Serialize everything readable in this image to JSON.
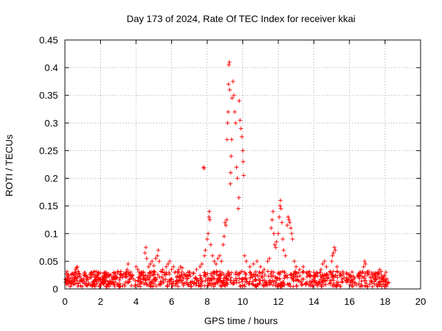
{
  "chart_data": {
    "type": "scatter",
    "title": "Day 173 of 2024, Rate Of TEC Index for receiver kkai",
    "xlabel": "GPS time / hours",
    "ylabel": "ROTI / TECUs",
    "xlim": [
      0,
      20
    ],
    "ylim": [
      0,
      0.45
    ],
    "x_ticks": [
      0,
      2,
      4,
      6,
      8,
      10,
      12,
      14,
      16,
      18,
      20
    ],
    "y_ticks": [
      0,
      0.05,
      0.1,
      0.15,
      0.2,
      0.25,
      0.3,
      0.35,
      0.4,
      0.45
    ],
    "x_tick_labels": [
      "0",
      "2",
      "4",
      "6",
      "8",
      "10",
      "12",
      "14",
      "16",
      "18",
      "20"
    ],
    "y_tick_labels": [
      "0",
      "0.05",
      "0.1",
      "0.15",
      "0.2",
      "0.25",
      "0.3",
      "0.35",
      "0.4",
      "0.45"
    ],
    "grid": true,
    "marker": "+",
    "color": "#ff0000",
    "series": [
      {
        "name": "ROTI",
        "points": [
          [
            0.05,
            0.012
          ],
          [
            0.1,
            0.008
          ],
          [
            0.15,
            0.015
          ],
          [
            0.2,
            0.01
          ],
          [
            0.3,
            0.018
          ],
          [
            0.4,
            0.02
          ],
          [
            0.5,
            0.025
          ],
          [
            0.55,
            0.03
          ],
          [
            0.6,
            0.035
          ],
          [
            0.65,
            0.038
          ],
          [
            0.7,
            0.04
          ],
          [
            0.75,
            0.032
          ],
          [
            0.8,
            0.028
          ],
          [
            0.9,
            0.02
          ],
          [
            1.0,
            0.015
          ],
          [
            1.2,
            0.018
          ],
          [
            1.4,
            0.02
          ],
          [
            1.5,
            0.025
          ],
          [
            1.6,
            0.03
          ],
          [
            1.7,
            0.022
          ],
          [
            1.9,
            0.018
          ],
          [
            2.1,
            0.022
          ],
          [
            2.3,
            0.02
          ],
          [
            2.5,
            0.024
          ],
          [
            2.7,
            0.022
          ],
          [
            2.9,
            0.02
          ],
          [
            3.1,
            0.02
          ],
          [
            3.3,
            0.028
          ],
          [
            3.5,
            0.035
          ],
          [
            3.55,
            0.045
          ],
          [
            3.6,
            0.03
          ],
          [
            3.8,
            0.025
          ],
          [
            4.0,
            0.04
          ],
          [
            4.1,
            0.035
          ],
          [
            4.3,
            0.03
          ],
          [
            4.5,
            0.065
          ],
          [
            4.55,
            0.075
          ],
          [
            4.6,
            0.055
          ],
          [
            4.7,
            0.04
          ],
          [
            4.8,
            0.045
          ],
          [
            4.9,
            0.05
          ],
          [
            5.0,
            0.042
          ],
          [
            5.1,
            0.055
          ],
          [
            5.2,
            0.06
          ],
          [
            5.25,
            0.07
          ],
          [
            5.3,
            0.05
          ],
          [
            5.5,
            0.035
          ],
          [
            5.7,
            0.04
          ],
          [
            5.8,
            0.045
          ],
          [
            5.9,
            0.05
          ],
          [
            6.0,
            0.035
          ],
          [
            6.1,
            0.04
          ],
          [
            6.2,
            0.03
          ],
          [
            6.4,
            0.035
          ],
          [
            6.5,
            0.04
          ],
          [
            6.6,
            0.038
          ],
          [
            6.8,
            0.025
          ],
          [
            7.0,
            0.03
          ],
          [
            7.2,
            0.028
          ],
          [
            7.4,
            0.035
          ],
          [
            7.6,
            0.04
          ],
          [
            7.7,
            0.045
          ],
          [
            7.8,
            0.22
          ],
          [
            7.82,
            0.218
          ],
          [
            7.85,
            0.06
          ],
          [
            7.9,
            0.07
          ],
          [
            8.0,
            0.09
          ],
          [
            8.05,
            0.1
          ],
          [
            8.1,
            0.13
          ],
          [
            8.12,
            0.14
          ],
          [
            8.15,
            0.125
          ],
          [
            8.2,
            0.08
          ],
          [
            8.3,
            0.06
          ],
          [
            8.4,
            0.05
          ],
          [
            8.5,
            0.045
          ],
          [
            8.6,
            0.055
          ],
          [
            8.7,
            0.06
          ],
          [
            8.8,
            0.05
          ],
          [
            8.9,
            0.08
          ],
          [
            8.95,
            0.095
          ],
          [
            9.0,
            0.12
          ],
          [
            9.05,
            0.115
          ],
          [
            9.1,
            0.125
          ],
          [
            9.12,
            0.27
          ],
          [
            9.15,
            0.3
          ],
          [
            9.18,
            0.32
          ],
          [
            9.2,
            0.37
          ],
          [
            9.22,
            0.405
          ],
          [
            9.25,
            0.41
          ],
          [
            9.27,
            0.36
          ],
          [
            9.3,
            0.19
          ],
          [
            9.32,
            0.21
          ],
          [
            9.35,
            0.24
          ],
          [
            9.38,
            0.27
          ],
          [
            9.4,
            0.345
          ],
          [
            9.45,
            0.375
          ],
          [
            9.5,
            0.35
          ],
          [
            9.55,
            0.32
          ],
          [
            9.6,
            0.3
          ],
          [
            9.65,
            0.22
          ],
          [
            9.7,
            0.2
          ],
          [
            9.75,
            0.145
          ],
          [
            9.78,
            0.165
          ],
          [
            9.8,
            0.34
          ],
          [
            9.85,
            0.305
          ],
          [
            9.9,
            0.29
          ],
          [
            9.95,
            0.275
          ],
          [
            10.0,
            0.25
          ],
          [
            10.02,
            0.23
          ],
          [
            10.05,
            0.205
          ],
          [
            10.1,
            0.06
          ],
          [
            10.2,
            0.05
          ],
          [
            10.4,
            0.04
          ],
          [
            10.6,
            0.045
          ],
          [
            10.8,
            0.05
          ],
          [
            11.0,
            0.04
          ],
          [
            11.2,
            0.035
          ],
          [
            11.4,
            0.05
          ],
          [
            11.5,
            0.055
          ],
          [
            11.6,
            0.11
          ],
          [
            11.65,
            0.125
          ],
          [
            11.7,
            0.14
          ],
          [
            11.75,
            0.1
          ],
          [
            11.8,
            0.08
          ],
          [
            11.85,
            0.075
          ],
          [
            11.9,
            0.085
          ],
          [
            12.0,
            0.1
          ],
          [
            12.05,
            0.13
          ],
          [
            12.1,
            0.15
          ],
          [
            12.12,
            0.16
          ],
          [
            12.15,
            0.145
          ],
          [
            12.2,
            0.12
          ],
          [
            12.25,
            0.09
          ],
          [
            12.3,
            0.07
          ],
          [
            12.4,
            0.06
          ],
          [
            12.5,
            0.115
          ],
          [
            12.55,
            0.13
          ],
          [
            12.6,
            0.125
          ],
          [
            12.65,
            0.12
          ],
          [
            12.7,
            0.11
          ],
          [
            12.75,
            0.1
          ],
          [
            12.8,
            0.09
          ],
          [
            12.9,
            0.05
          ],
          [
            13.0,
            0.04
          ],
          [
            13.2,
            0.035
          ],
          [
            13.4,
            0.04
          ],
          [
            13.6,
            0.03
          ],
          [
            13.8,
            0.025
          ],
          [
            14.0,
            0.03
          ],
          [
            14.2,
            0.028
          ],
          [
            14.4,
            0.035
          ],
          [
            14.5,
            0.045
          ],
          [
            14.6,
            0.05
          ],
          [
            14.7,
            0.04
          ],
          [
            14.9,
            0.03
          ],
          [
            15.0,
            0.05
          ],
          [
            15.05,
            0.06
          ],
          [
            15.1,
            0.065
          ],
          [
            15.15,
            0.075
          ],
          [
            15.2,
            0.07
          ],
          [
            15.3,
            0.04
          ],
          [
            15.5,
            0.025
          ],
          [
            15.7,
            0.02
          ],
          [
            15.9,
            0.018
          ],
          [
            16.1,
            0.015
          ],
          [
            16.3,
            0.02
          ],
          [
            16.5,
            0.022
          ],
          [
            16.7,
            0.03
          ],
          [
            16.8,
            0.04
          ],
          [
            16.85,
            0.05
          ],
          [
            16.9,
            0.045
          ],
          [
            17.0,
            0.03
          ],
          [
            17.2,
            0.02
          ],
          [
            17.4,
            0.025
          ],
          [
            17.6,
            0.03
          ],
          [
            17.7,
            0.035
          ],
          [
            17.8,
            0.025
          ],
          [
            17.9,
            0.02
          ],
          [
            18.0,
            0.015
          ],
          [
            18.1,
            0.018
          ],
          [
            18.2,
            0.012
          ]
        ]
      }
    ]
  }
}
